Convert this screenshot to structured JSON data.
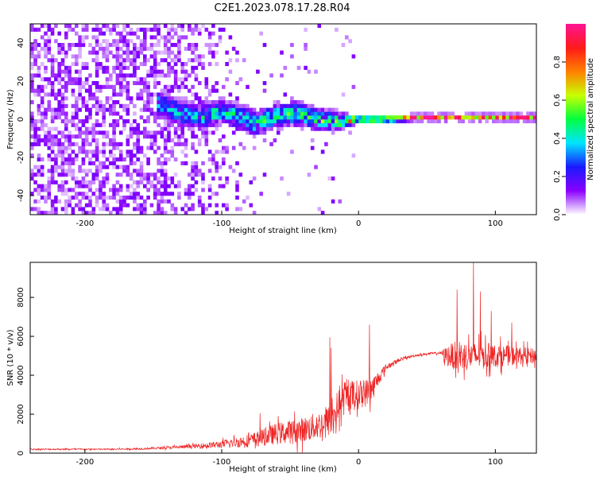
{
  "title": "C2E1.2023.078.17.28.R04",
  "colors": {
    "snr_line": "#ee2222",
    "colormap": [
      "#ffffff",
      "#8a00ff",
      "#1a1aff",
      "#00e5ff",
      "#00ff40",
      "#c8ff00",
      "#ff8000",
      "#ff1a1a",
      "#ff1493"
    ]
  },
  "chart_data": [
    {
      "type": "heatmap",
      "xlabel": "Height of straight line (km)",
      "ylabel": "Frequency (Hz)",
      "xlim": [
        -240,
        130
      ],
      "ylim": [
        -50,
        50
      ],
      "xticks": [
        -200,
        -100,
        0,
        100
      ],
      "xtick_labels": [
        "-200",
        "-100",
        "0",
        "100"
      ],
      "yticks": [
        -40,
        -20,
        0,
        20,
        40
      ],
      "ytick_labels": [
        "-40",
        "-20",
        "0",
        "20",
        "40"
      ],
      "colorbar": {
        "label": "Normalized spectral amplitude",
        "range": [
          0,
          1
        ],
        "ticks": [
          0.0,
          0.2,
          0.4,
          0.6,
          0.8
        ],
        "tick_labels": [
          "0.0",
          "0.2",
          "0.4",
          "0.6",
          "0.8"
        ]
      },
      "ridge_center_hz": {
        "x": [
          -145,
          -130,
          -115,
          -100,
          -90,
          -75,
          -60,
          -45,
          -30,
          -15,
          0,
          20,
          40,
          60,
          80,
          100,
          120,
          130
        ],
        "y": [
          8,
          3,
          1,
          4,
          2,
          -2,
          2,
          3,
          0,
          -1,
          0,
          0,
          1,
          1,
          1,
          1,
          1,
          1
        ]
      },
      "ridge_halfwidth_hz": {
        "x": [
          -145,
          -100,
          -60,
          -20,
          0,
          130
        ],
        "y": [
          7,
          6,
          6,
          5,
          1.5,
          1.5
        ]
      },
      "peak_amplitude": {
        "x": [
          -145,
          -100,
          -60,
          -20,
          -5,
          20,
          60,
          100,
          130
        ],
        "y": [
          0.35,
          0.45,
          0.5,
          0.55,
          0.85,
          0.9,
          0.9,
          0.9,
          0.9
        ]
      }
    },
    {
      "type": "line",
      "xlabel": "Height of straight line (km)",
      "ylabel": "SNR (10 * v/v)",
      "xlim": [
        -240,
        130
      ],
      "ylim": [
        0,
        9800
      ],
      "xticks": [
        -200,
        -100,
        0,
        100
      ],
      "xtick_labels": [
        "-200",
        "-100",
        "0",
        "100"
      ],
      "yticks": [
        0,
        2000,
        4000,
        6000,
        8000
      ],
      "ytick_labels": [
        "0",
        "2000",
        "4000",
        "6000",
        "8000"
      ],
      "series": [
        {
          "envelope_x": [
            -240,
            -180,
            -160,
            -140,
            -120,
            -100,
            -80,
            -70,
            -60,
            -50,
            -40,
            -30,
            -20,
            -15,
            -10,
            -5,
            0,
            5,
            10,
            15,
            20,
            30,
            40,
            50,
            60,
            65,
            70,
            80,
            90,
            100,
            110,
            120,
            130
          ],
          "mean": [
            200,
            200,
            220,
            280,
            350,
            450,
            650,
            800,
            1000,
            1100,
            1200,
            1400,
            1700,
            2400,
            2800,
            3000,
            3000,
            3100,
            3300,
            3900,
            4400,
            4800,
            5000,
            5100,
            5150,
            5000,
            5000,
            5000,
            5000,
            5000,
            5000,
            5000,
            5000
          ],
          "spread": [
            60,
            60,
            80,
            120,
            200,
            350,
            600,
            800,
            1000,
            1100,
            1200,
            1300,
            1500,
            1600,
            1500,
            1400,
            1400,
            1300,
            1200,
            700,
            300,
            150,
            120,
            100,
            100,
            1000,
            1300,
            1400,
            1300,
            1100,
            900,
            800,
            700
          ],
          "spikes": [
            {
              "x": -21,
              "y": 5950
            },
            {
              "x": -20,
              "y": 5400
            },
            {
              "x": 8,
              "y": 6600
            },
            {
              "x": 84,
              "y": 9800
            },
            {
              "x": 89,
              "y": 8300
            },
            {
              "x": 72,
              "y": 8400
            },
            {
              "x": 97,
              "y": 7300
            },
            {
              "x": 112,
              "y": 6700
            },
            {
              "x": -72,
              "y": 2050
            }
          ]
        }
      ]
    }
  ]
}
